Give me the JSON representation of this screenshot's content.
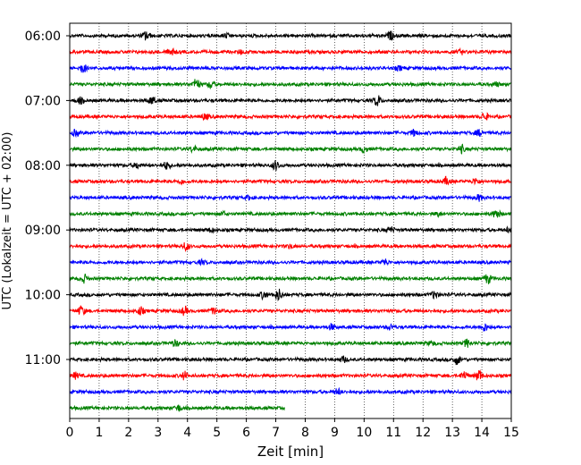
{
  "chart_data": {
    "type": "line",
    "title": "",
    "xlabel": "Zeit  [min]",
    "ylabel": "UTC (Lokalzeit = UTC + 02:00)",
    "xlim": [
      0,
      15
    ],
    "x_ticks": [
      "0",
      "1",
      "2",
      "3",
      "4",
      "5",
      "6",
      "7",
      "8",
      "9",
      "10",
      "11",
      "12",
      "13",
      "14",
      "15"
    ],
    "y_ticks": [
      "06:00",
      "07:00",
      "08:00",
      "09:00",
      "10:00",
      "11:00"
    ],
    "grid": "vertical-dotted",
    "legend": "none",
    "row_interval_min": 15,
    "row_colors": [
      "#000000",
      "#ff0000",
      "#0000ff",
      "#008000"
    ],
    "rows": [
      {
        "time": "06:00",
        "color": "#000000",
        "end_min": 15,
        "events": [
          [
            2.6,
            5
          ],
          [
            10.9,
            4
          ],
          [
            5.3,
            2
          ]
        ]
      },
      {
        "time": "06:15",
        "color": "#ff0000",
        "end_min": 15,
        "events": [
          [
            3.45,
            4
          ],
          [
            5.8,
            2
          ],
          [
            13.3,
            2
          ]
        ]
      },
      {
        "time": "06:30",
        "color": "#0000ff",
        "end_min": 15,
        "events": [
          [
            0.45,
            5
          ],
          [
            11.2,
            2
          ]
        ]
      },
      {
        "time": "06:45",
        "color": "#008000",
        "end_min": 15,
        "events": [
          [
            4.3,
            6
          ],
          [
            4.8,
            4
          ],
          [
            14.5,
            2
          ]
        ]
      },
      {
        "time": "07:00",
        "color": "#000000",
        "end_min": 15,
        "events": [
          [
            0.35,
            3
          ],
          [
            2.8,
            4
          ],
          [
            10.45,
            6
          ]
        ]
      },
      {
        "time": "07:15",
        "color": "#ff0000",
        "end_min": 15,
        "events": [
          [
            4.6,
            3
          ],
          [
            14.1,
            4
          ]
        ]
      },
      {
        "time": "07:30",
        "color": "#0000ff",
        "end_min": 15,
        "events": [
          [
            0.2,
            3
          ],
          [
            11.7,
            3
          ],
          [
            13.9,
            3
          ]
        ]
      },
      {
        "time": "07:45",
        "color": "#008000",
        "end_min": 15,
        "events": [
          [
            4.2,
            3
          ],
          [
            10.0,
            3
          ],
          [
            13.3,
            4
          ]
        ]
      },
      {
        "time": "08:00",
        "color": "#000000",
        "end_min": 15,
        "events": [
          [
            2.3,
            3
          ],
          [
            3.3,
            4
          ],
          [
            7.0,
            5
          ]
        ]
      },
      {
        "time": "08:15",
        "color": "#ff0000",
        "end_min": 15,
        "events": [
          [
            3.8,
            2
          ],
          [
            12.8,
            4
          ],
          [
            13.8,
            3
          ]
        ]
      },
      {
        "time": "08:30",
        "color": "#0000ff",
        "end_min": 15,
        "events": [
          [
            13.9,
            3
          ],
          [
            6.1,
            2
          ]
        ]
      },
      {
        "time": "08:45",
        "color": "#008000",
        "end_min": 15,
        "events": [
          [
            5.2,
            2
          ],
          [
            14.5,
            5
          ],
          [
            12.5,
            2
          ]
        ]
      },
      {
        "time": "09:00",
        "color": "#000000",
        "end_min": 15,
        "events": [
          [
            4.8,
            2
          ],
          [
            10.9,
            3
          ],
          [
            14.9,
            2
          ]
        ]
      },
      {
        "time": "09:15",
        "color": "#ff0000",
        "end_min": 15,
        "events": [
          [
            3.95,
            4
          ],
          [
            7.5,
            2
          ]
        ]
      },
      {
        "time": "09:30",
        "color": "#0000ff",
        "end_min": 15,
        "events": [
          [
            10.7,
            3
          ],
          [
            4.5,
            2
          ]
        ]
      },
      {
        "time": "09:45",
        "color": "#008000",
        "end_min": 15,
        "events": [
          [
            0.5,
            4
          ],
          [
            14.2,
            5
          ]
        ]
      },
      {
        "time": "10:00",
        "color": "#000000",
        "end_min": 15,
        "events": [
          [
            6.6,
            4
          ],
          [
            7.1,
            6
          ],
          [
            12.4,
            4
          ]
        ]
      },
      {
        "time": "10:15",
        "color": "#ff0000",
        "end_min": 15,
        "events": [
          [
            0.4,
            5
          ],
          [
            2.4,
            4
          ],
          [
            3.9,
            4
          ],
          [
            4.9,
            3
          ]
        ]
      },
      {
        "time": "10:30",
        "color": "#0000ff",
        "end_min": 15,
        "events": [
          [
            8.9,
            3
          ],
          [
            10.9,
            3
          ],
          [
            14.1,
            4
          ]
        ]
      },
      {
        "time": "10:45",
        "color": "#008000",
        "end_min": 15,
        "events": [
          [
            3.6,
            3
          ],
          [
            13.5,
            4
          ],
          [
            12.3,
            2
          ]
        ]
      },
      {
        "time": "11:00",
        "color": "#000000",
        "end_min": 15,
        "events": [
          [
            13.15,
            5
          ],
          [
            9.3,
            3
          ]
        ]
      },
      {
        "time": "11:15",
        "color": "#ff0000",
        "end_min": 15,
        "events": [
          [
            0.2,
            3
          ],
          [
            3.9,
            4
          ],
          [
            13.9,
            6
          ],
          [
            13.4,
            4
          ]
        ]
      },
      {
        "time": "11:30",
        "color": "#0000ff",
        "end_min": 15,
        "events": [
          [
            9.1,
            3
          ]
        ]
      },
      {
        "time": "11:45",
        "color": "#008000",
        "end_min": 7.3,
        "events": [
          [
            3.7,
            3
          ]
        ]
      }
    ]
  }
}
